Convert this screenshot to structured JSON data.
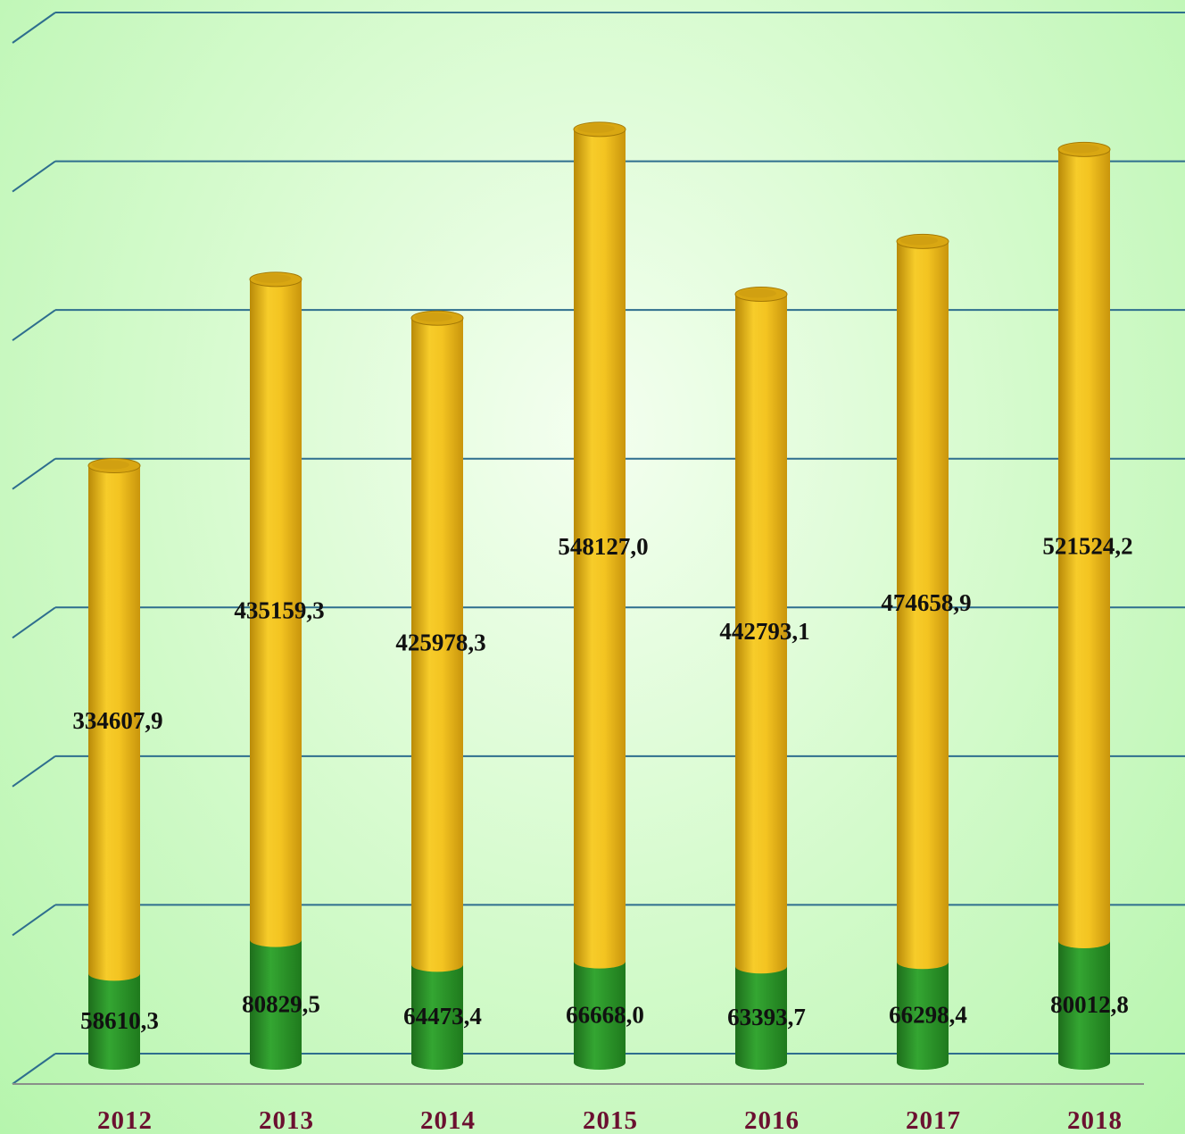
{
  "chart_data": {
    "type": "bar",
    "stacked": true,
    "three_d": true,
    "bar_shape": "cylinder",
    "categories": [
      "2012",
      "2013",
      "2014",
      "2015",
      "2016",
      "2017",
      "2018"
    ],
    "series": [
      {
        "color": "#2e9a2c",
        "values": [
          58610.3,
          80829.5,
          64473.4,
          66668.0,
          63393.7,
          66298.4,
          80012.8
        ],
        "labels": [
          "58610,3",
          "80829,5",
          "64473,4",
          "66668,0",
          "63393,7",
          "66298,4",
          "80012,8"
        ]
      },
      {
        "color": "#f0c020",
        "values": [
          334607.9,
          435159.3,
          425978.3,
          548127.0,
          442793.1,
          474658.9,
          521524.2
        ],
        "labels": [
          "334607,9",
          "435159,3",
          "425978,3",
          "548127,0",
          "442793,1",
          "474658,9",
          "521524,2"
        ]
      }
    ],
    "title": "",
    "xlabel": "",
    "ylabel": "",
    "ylim": [
      0,
      700000
    ],
    "y_ticks_shown": false,
    "grid": true,
    "legend": "none",
    "gridline_color": "#2e6e8e",
    "tick_label_color": "#6b1030"
  }
}
